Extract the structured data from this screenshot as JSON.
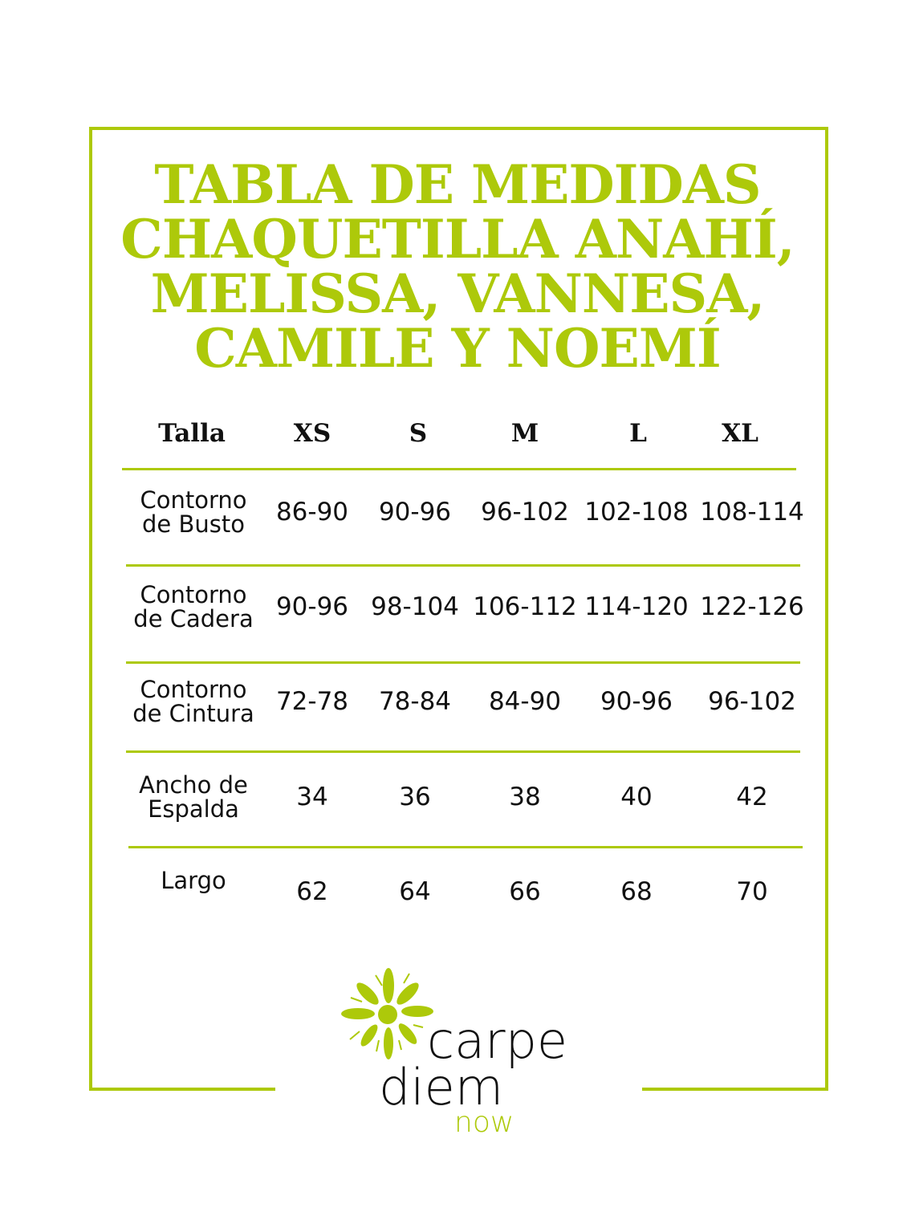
{
  "title_lines": [
    "TABLA DE MEDIDAS",
    "CHAQUETILLA ANAHÍ,",
    "MELISSA, VANNESA,",
    "CAMILE Y NOEMÍ"
  ],
  "table": {
    "header": [
      "Talla",
      "XS",
      "S",
      "M",
      "L",
      "XL"
    ],
    "rows": [
      {
        "label": [
          "Contorno",
          "de Busto"
        ],
        "values": [
          "86-90",
          "90-96",
          "96-102",
          "102-108",
          "108-114"
        ]
      },
      {
        "label": [
          "Contorno",
          "de Cadera"
        ],
        "values": [
          "90-96",
          "98-104",
          "106-112",
          "114-120",
          "122-126"
        ]
      },
      {
        "label": [
          "Contorno",
          "de Cintura"
        ],
        "values": [
          "72-78",
          "78-84",
          "84-90",
          "90-96",
          "96-102"
        ]
      },
      {
        "label": [
          "Ancho de",
          "Espalda"
        ],
        "values": [
          "34",
          "36",
          "38",
          "40",
          "42"
        ]
      },
      {
        "label": [
          "Largo"
        ],
        "values": [
          "62",
          "64",
          "66",
          "68",
          "70"
        ]
      }
    ]
  },
  "logo": {
    "line1": "carpe",
    "line2": "diem",
    "line3": "now",
    "icon": "flower-icon"
  },
  "colors": {
    "accent": "#adc90a",
    "text": "#111111"
  }
}
